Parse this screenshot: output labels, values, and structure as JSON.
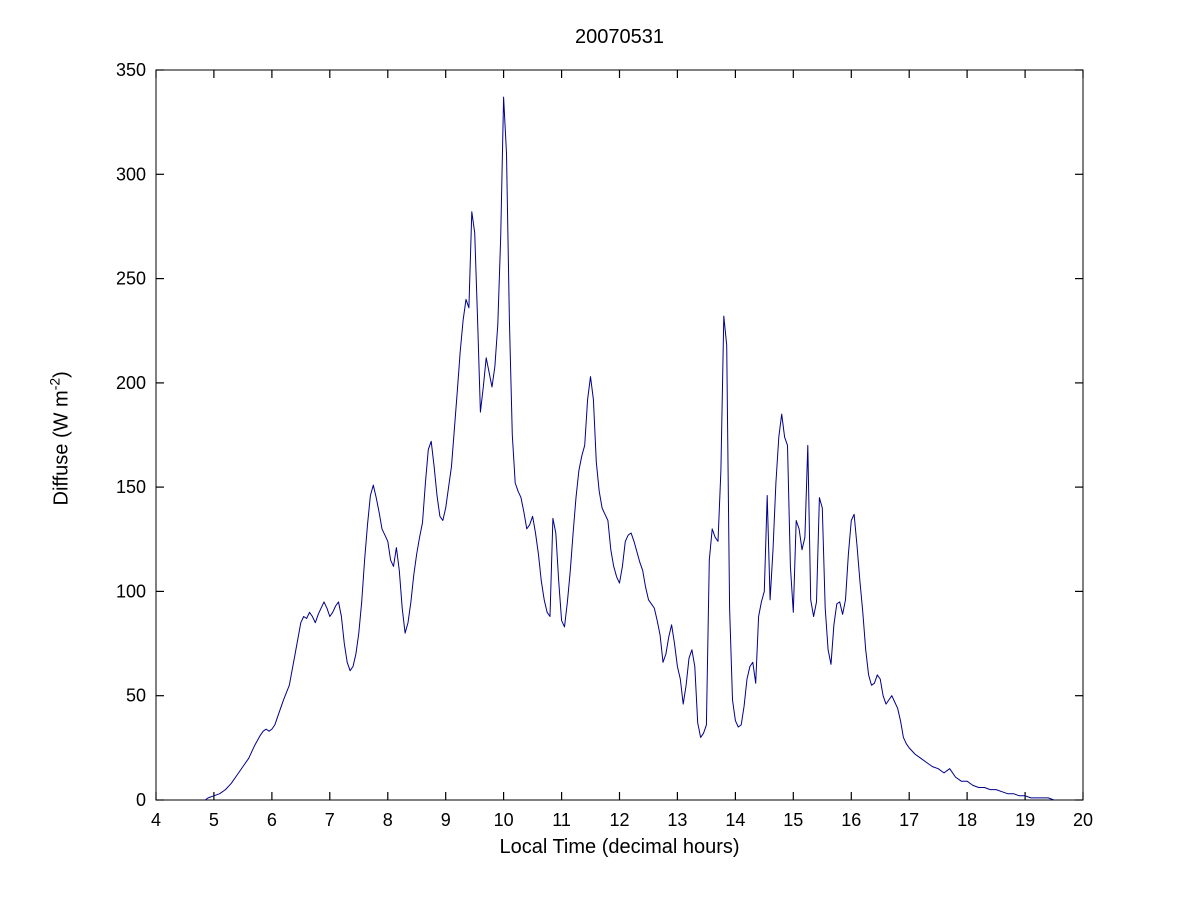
{
  "chart_data": {
    "type": "line",
    "title": "20070531",
    "xlabel": "Local Time (decimal hours)",
    "ylabel": "Diffuse (W m⁻²)",
    "ylabel_parts": {
      "pre": "Diffuse (W m",
      "sup": "-2",
      "post": ")"
    },
    "xlim": [
      4,
      20
    ],
    "ylim": [
      0,
      350
    ],
    "xticks": [
      4,
      5,
      6,
      7,
      8,
      9,
      10,
      11,
      12,
      13,
      14,
      15,
      16,
      17,
      18,
      19,
      20
    ],
    "yticks": [
      0,
      50,
      100,
      150,
      200,
      250,
      300,
      350
    ],
    "line_color": "#00008B",
    "axis_color": "#000000",
    "legend": "none",
    "grid": false,
    "x": [
      4.85,
      4.9,
      5.0,
      5.1,
      5.2,
      5.3,
      5.4,
      5.5,
      5.6,
      5.7,
      5.8,
      5.85,
      5.9,
      5.95,
      6.0,
      6.05,
      6.1,
      6.2,
      6.3,
      6.4,
      6.5,
      6.55,
      6.6,
      6.65,
      6.7,
      6.75,
      6.8,
      6.85,
      6.9,
      6.95,
      7.0,
      7.05,
      7.1,
      7.15,
      7.2,
      7.25,
      7.3,
      7.35,
      7.4,
      7.45,
      7.5,
      7.55,
      7.6,
      7.65,
      7.7,
      7.75,
      7.8,
      7.85,
      7.9,
      7.95,
      8.0,
      8.05,
      8.1,
      8.15,
      8.2,
      8.25,
      8.3,
      8.35,
      8.4,
      8.45,
      8.5,
      8.55,
      8.6,
      8.65,
      8.7,
      8.75,
      8.8,
      8.85,
      8.9,
      8.95,
      9.0,
      9.05,
      9.1,
      9.15,
      9.2,
      9.25,
      9.3,
      9.35,
      9.4,
      9.45,
      9.5,
      9.55,
      9.6,
      9.65,
      9.7,
      9.75,
      9.8,
      9.85,
      9.9,
      9.95,
      10.0,
      10.05,
      10.1,
      10.15,
      10.2,
      10.25,
      10.3,
      10.35,
      10.4,
      10.45,
      10.5,
      10.55,
      10.6,
      10.65,
      10.7,
      10.75,
      10.8,
      10.85,
      10.9,
      10.95,
      11.0,
      11.05,
      11.1,
      11.15,
      11.2,
      11.25,
      11.3,
      11.35,
      11.4,
      11.45,
      11.5,
      11.55,
      11.6,
      11.65,
      11.7,
      11.75,
      11.8,
      11.85,
      11.9,
      11.95,
      12.0,
      12.05,
      12.1,
      12.15,
      12.2,
      12.25,
      12.3,
      12.35,
      12.4,
      12.45,
      12.5,
      12.55,
      12.6,
      12.65,
      12.7,
      12.75,
      12.8,
      12.85,
      12.9,
      12.95,
      13.0,
      13.05,
      13.1,
      13.15,
      13.2,
      13.25,
      13.3,
      13.35,
      13.4,
      13.45,
      13.5,
      13.55,
      13.6,
      13.65,
      13.7,
      13.75,
      13.8,
      13.85,
      13.9,
      13.95,
      14.0,
      14.05,
      14.1,
      14.15,
      14.2,
      14.25,
      14.3,
      14.35,
      14.4,
      14.45,
      14.5,
      14.55,
      14.6,
      14.65,
      14.7,
      14.75,
      14.8,
      14.85,
      14.9,
      14.95,
      15.0,
      15.05,
      15.1,
      15.15,
      15.2,
      15.25,
      15.3,
      15.35,
      15.4,
      15.45,
      15.5,
      15.55,
      15.6,
      15.65,
      15.7,
      15.75,
      15.8,
      15.85,
      15.9,
      15.95,
      16.0,
      16.05,
      16.1,
      16.15,
      16.2,
      16.25,
      16.3,
      16.35,
      16.4,
      16.45,
      16.5,
      16.55,
      16.6,
      16.65,
      16.7,
      16.75,
      16.8,
      16.85,
      16.9,
      16.95,
      17.0,
      17.1,
      17.2,
      17.3,
      17.4,
      17.5,
      17.6,
      17.7,
      17.8,
      17.9,
      18.0,
      18.1,
      18.2,
      18.3,
      18.4,
      18.5,
      18.6,
      18.7,
      18.8,
      18.9,
      19.0,
      19.1,
      19.2,
      19.3,
      19.4,
      19.5
    ],
    "y": [
      0,
      1,
      2,
      3,
      5,
      8,
      12,
      16,
      20,
      26,
      31,
      33,
      34,
      33,
      34,
      36,
      40,
      48,
      55,
      70,
      85,
      88,
      87,
      90,
      88,
      85,
      89,
      92,
      95,
      92,
      88,
      90,
      93,
      95,
      88,
      75,
      66,
      62,
      64,
      70,
      80,
      95,
      115,
      132,
      146,
      151,
      145,
      138,
      130,
      127,
      124,
      115,
      112,
      121,
      110,
      92,
      80,
      85,
      95,
      108,
      118,
      126,
      133,
      152,
      168,
      172,
      160,
      146,
      136,
      134,
      140,
      150,
      160,
      178,
      196,
      215,
      230,
      240,
      236,
      282,
      272,
      230,
      186,
      198,
      212,
      205,
      198,
      208,
      228,
      270,
      337,
      310,
      230,
      175,
      152,
      148,
      145,
      138,
      130,
      132,
      136,
      128,
      118,
      105,
      96,
      90,
      88,
      135,
      128,
      105,
      86,
      83,
      95,
      110,
      128,
      145,
      158,
      165,
      170,
      192,
      203,
      192,
      162,
      148,
      140,
      137,
      134,
      120,
      112,
      107,
      104,
      112,
      124,
      127,
      128,
      124,
      119,
      114,
      110,
      102,
      96,
      94,
      92,
      86,
      79,
      66,
      70,
      78,
      84,
      75,
      64,
      58,
      46,
      55,
      68,
      72,
      64,
      37,
      30,
      32,
      36,
      115,
      130,
      126,
      124,
      158,
      232,
      218,
      92,
      48,
      38,
      35,
      36,
      45,
      58,
      64,
      66,
      56,
      88,
      95,
      100,
      146,
      96,
      120,
      152,
      174,
      185,
      174,
      170,
      112,
      90,
      134,
      130,
      120,
      126,
      170,
      96,
      88,
      95,
      145,
      140,
      92,
      72,
      65,
      84,
      94,
      95,
      89,
      96,
      118,
      134,
      137,
      122,
      105,
      90,
      72,
      60,
      55,
      56,
      60,
      58,
      50,
      46,
      48,
      50,
      47,
      44,
      38,
      30,
      27,
      25,
      22,
      20,
      18,
      16,
      15,
      13,
      15,
      11,
      9,
      9,
      7,
      6,
      6,
      5,
      5,
      4,
      3,
      3,
      2,
      2,
      1,
      1,
      1,
      1,
      0
    ]
  }
}
